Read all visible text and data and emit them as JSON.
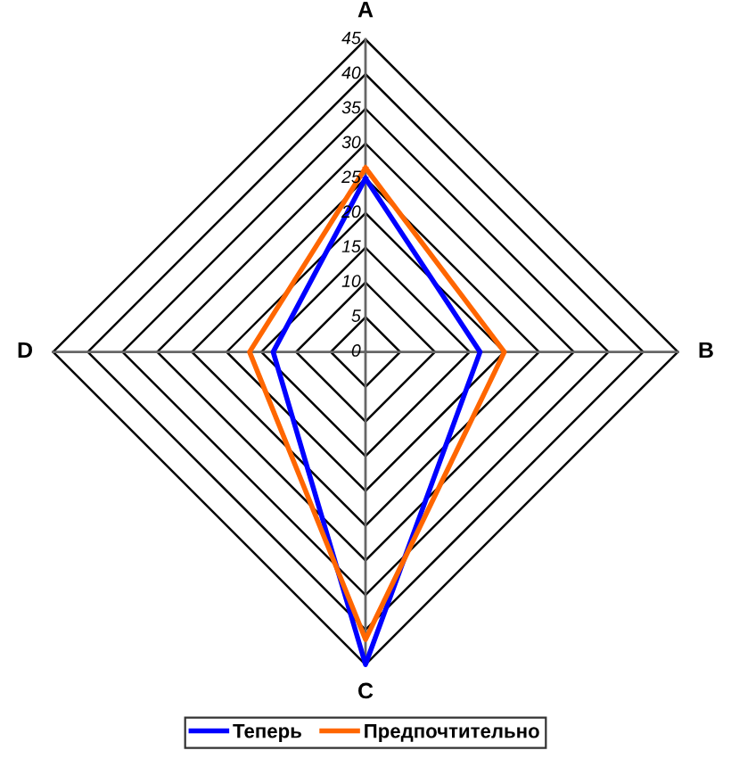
{
  "chart_data": {
    "type": "radar",
    "categories": [
      "A",
      "B",
      "C",
      "D"
    ],
    "ylim": [
      0,
      45
    ],
    "yticks": [
      0,
      5,
      10,
      15,
      20,
      25,
      30,
      35,
      40,
      45
    ],
    "grid": true,
    "legend": "bottom",
    "series": [
      {
        "name": "Теперь",
        "color": "#0000ff",
        "values": [
          25,
          16.5,
          45,
          13.3
        ]
      },
      {
        "name": "Предпочтительно",
        "color": "#ff6600",
        "values": [
          26.5,
          20,
          41.4,
          16.7
        ]
      }
    ]
  }
}
